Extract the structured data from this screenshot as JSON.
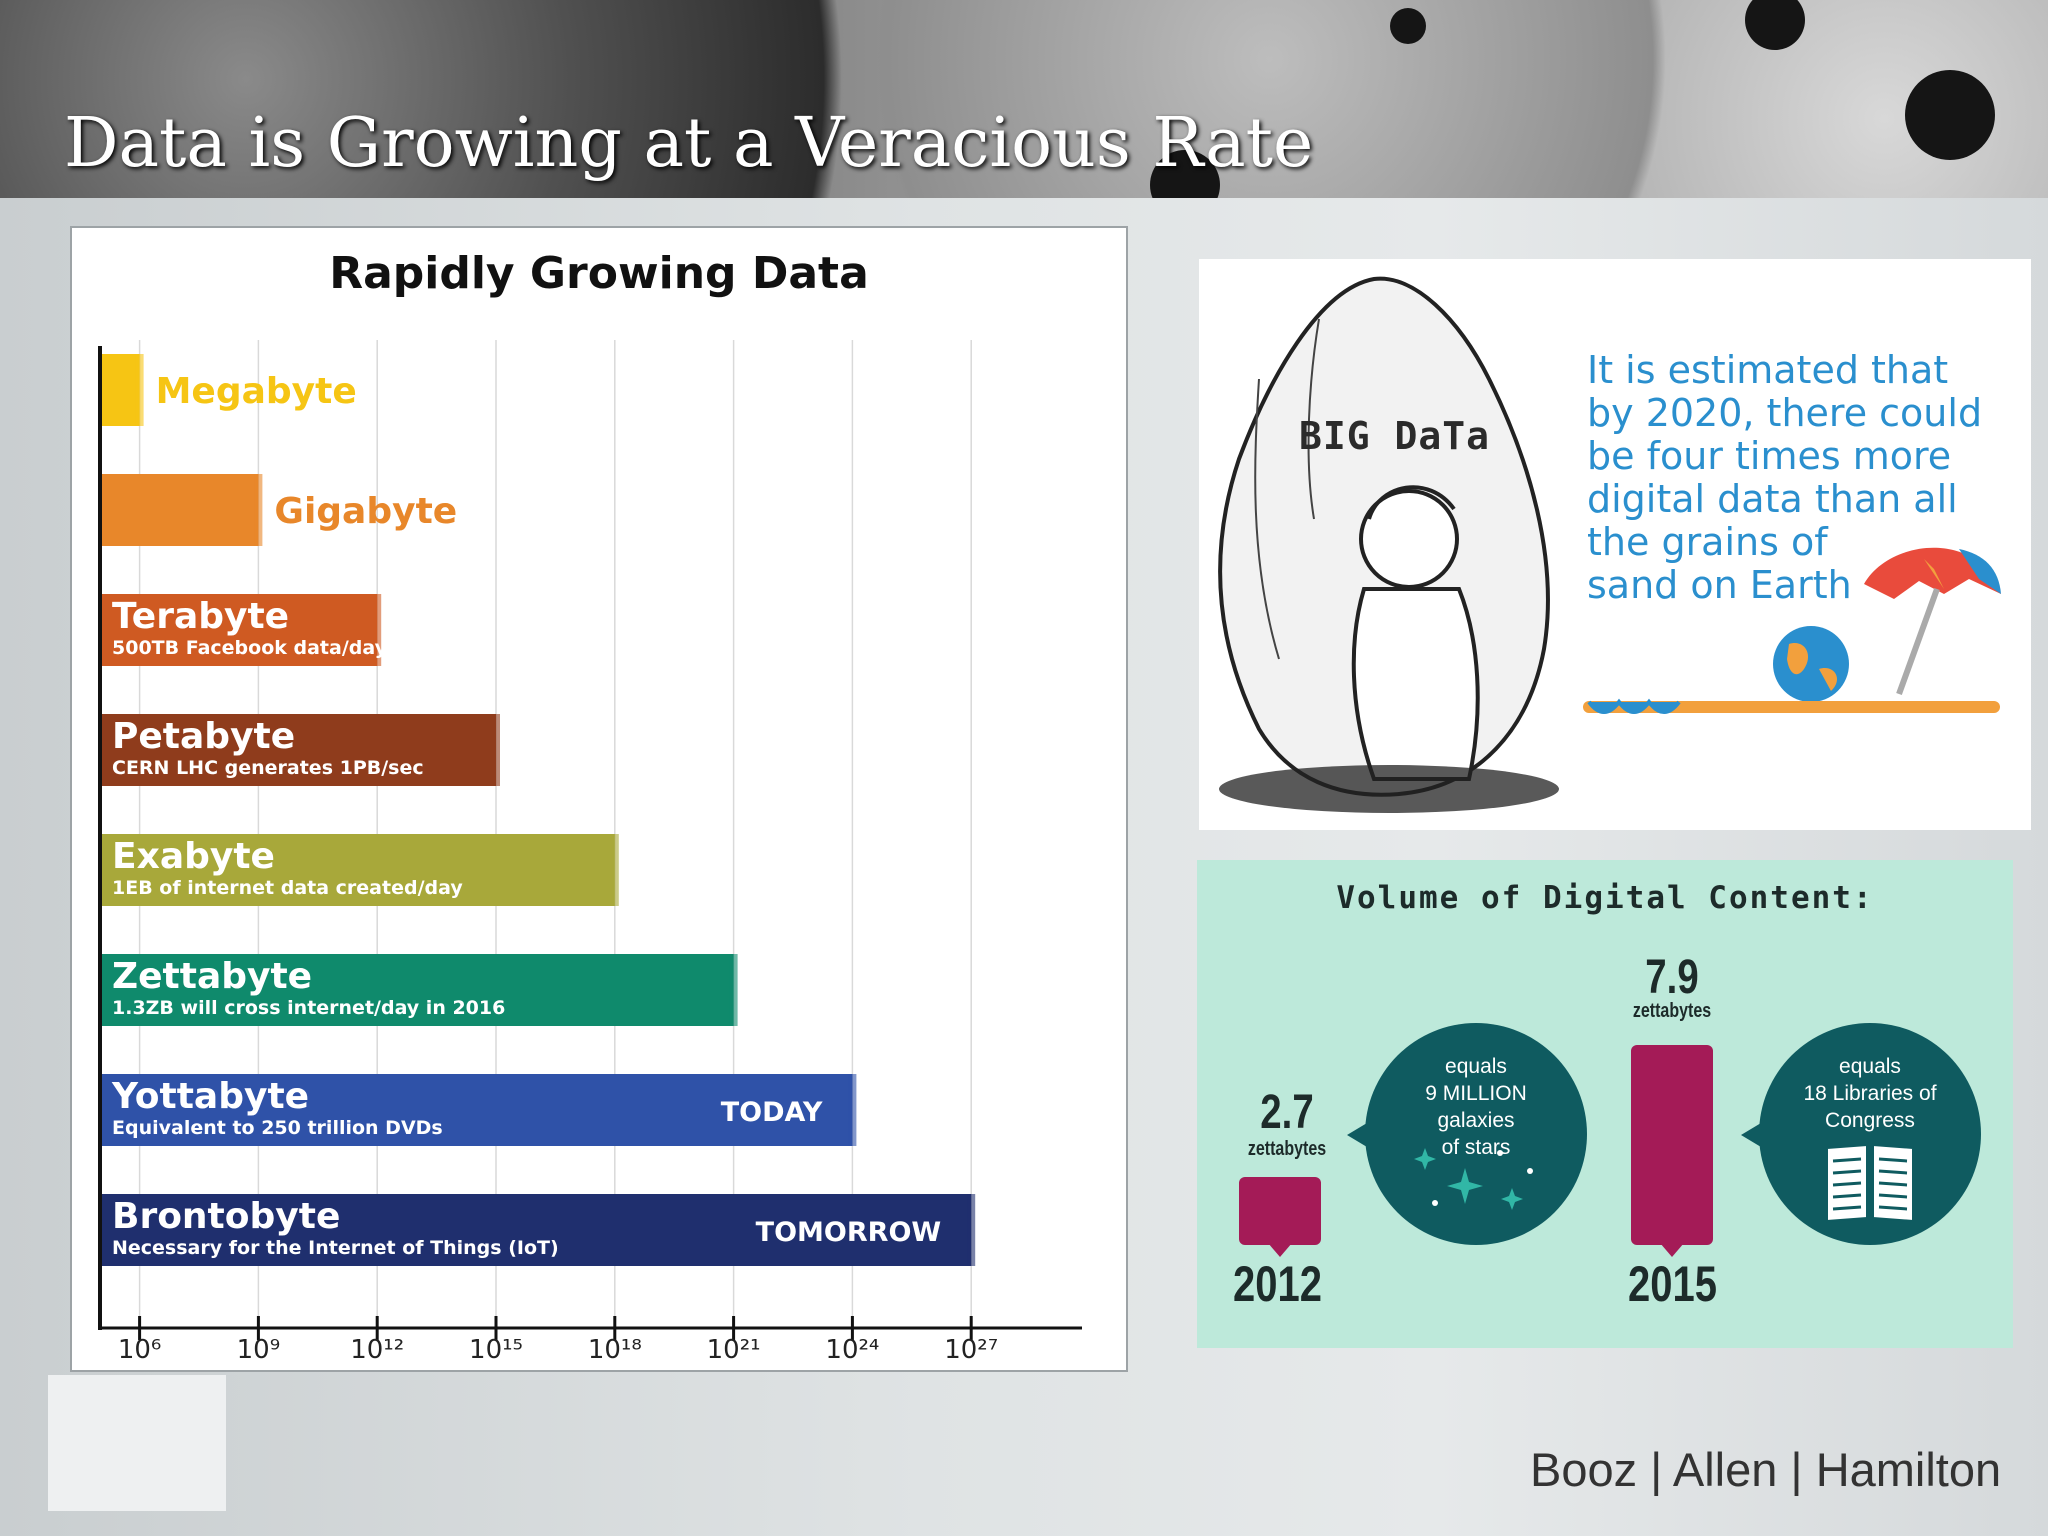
{
  "slide": {
    "title": "Data is Growing at a Veracious Rate",
    "footer_logo": "Booz | Allen | Hamilton"
  },
  "chart_data": [
    {
      "type": "bar",
      "orientation": "horizontal",
      "title": "Rapidly Growing Data",
      "xscale": "log",
      "x_tick_labels": [
        "10⁶",
        "10⁹",
        "10¹²",
        "10¹⁵",
        "10¹⁸",
        "10²¹",
        "10²⁴",
        "10²⁷"
      ],
      "x_tick_values": [
        1000000.0,
        1000000000.0,
        1000000000000.0,
        1000000000000000.0,
        1e+18,
        1e+21,
        1e+24,
        1e+27
      ],
      "categories": [
        "Megabyte",
        "Gigabyte",
        "Terabyte",
        "Petabyte",
        "Exabyte",
        "Zettabyte",
        "Yottabyte",
        "Brontobyte"
      ],
      "values": [
        1000000.0,
        1000000000.0,
        1000000000000.0,
        1000000000000000.0,
        1e+18,
        1e+21,
        1e+24,
        1e+27
      ],
      "annotations": [
        "",
        "",
        "500TB Facebook data/day",
        "CERN LHC generates 1PB/sec",
        "1EB of internet data created/day",
        "1.3ZB will cross internet/day in 2016",
        "Equivalent to 250 trillion DVDs",
        "Necessary for the Internet of Things (IoT)"
      ],
      "tags": [
        "",
        "",
        "",
        "",
        "",
        "",
        "TODAY",
        "TOMORROW"
      ],
      "colors": [
        "#f6c514",
        "#e8872a",
        "#cf5a22",
        "#8f3c1c",
        "#a8a83a",
        "#0f8a6c",
        "#2f52a8",
        "#1f2f6e"
      ]
    },
    {
      "type": "bar",
      "title": "Volume of Digital Content:",
      "categories": [
        "2012",
        "2015"
      ],
      "values": [
        2.7,
        7.9
      ],
      "value_labels": [
        "2.7",
        "7.9"
      ],
      "unit": "zettabytes",
      "colors": {
        "bar": "#a41b57",
        "circle": "#0f5b60",
        "background": "#bde9da"
      }
    }
  ],
  "bigdata": {
    "rock_label": "BIG DaTa",
    "estimate": "It is estimated that\nby 2020, there could\nbe four times more\ndigital data than all\nthe grains of\nsand on Earth",
    "accent": "#2a8fce"
  },
  "volume": {
    "circle_2012": "equals\n9 MILLION galaxies\nof stars",
    "circle_2015": "equals\n18 Libraries of\nCongress"
  }
}
